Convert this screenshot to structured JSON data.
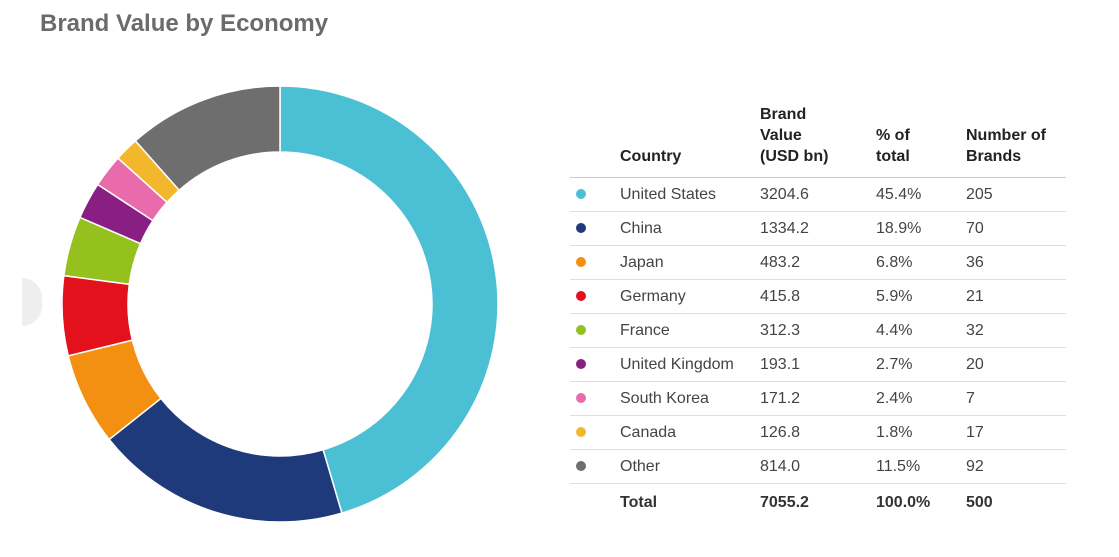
{
  "title": "Brand Value by Economy",
  "table": {
    "headers": {
      "country": "Country",
      "brand_value": [
        "Brand",
        "Value",
        "(USD bn)"
      ],
      "pct_total": [
        "% of",
        "total"
      ],
      "num_brands": [
        "Number of",
        "Brands"
      ]
    },
    "rows": [
      {
        "country": "United States",
        "value": "3204.6",
        "pct": "45.4%",
        "brands": "205",
        "color": "#4bbfd4"
      },
      {
        "country": "China",
        "value": "1334.2",
        "pct": "18.9%",
        "brands": "70",
        "color": "#1f3a7a"
      },
      {
        "country": "Japan",
        "value": "483.2",
        "pct": "6.8%",
        "brands": "36",
        "color": "#f39012"
      },
      {
        "country": "Germany",
        "value": "415.8",
        "pct": "5.9%",
        "brands": "21",
        "color": "#e3111c"
      },
      {
        "country": "France",
        "value": "312.3",
        "pct": "4.4%",
        "brands": "32",
        "color": "#95c11f"
      },
      {
        "country": "United Kingdom",
        "value": "193.1",
        "pct": "2.7%",
        "brands": "20",
        "color": "#8a1f83"
      },
      {
        "country": "South Korea",
        "value": "171.2",
        "pct": "2.4%",
        "brands": "7",
        "color": "#ea6bab"
      },
      {
        "country": "Canada",
        "value": "126.8",
        "pct": "1.8%",
        "brands": "17",
        "color": "#f3b72d"
      },
      {
        "country": "Other",
        "value": "814.0",
        "pct": "11.5%",
        "brands": "92",
        "color": "#6e6e6e"
      }
    ],
    "total": {
      "label": "Total",
      "value": "7055.2",
      "pct": "100.0%",
      "brands": "500"
    }
  },
  "chart_data": {
    "type": "pie",
    "donut": true,
    "title": "Brand Value by Economy",
    "start": "top, clockwise",
    "categories": [
      "United States",
      "China",
      "Japan",
      "Germany",
      "France",
      "United Kingdom",
      "South Korea",
      "Canada",
      "Other"
    ],
    "values": [
      3204.6,
      1334.2,
      483.2,
      415.8,
      312.3,
      193.1,
      171.2,
      126.8,
      814.0
    ],
    "colors": [
      "#4bbfd4",
      "#1f3a7a",
      "#f39012",
      "#e3111c",
      "#95c11f",
      "#8a1f83",
      "#ea6bab",
      "#f3b72d",
      "#6e6e6e"
    ]
  }
}
